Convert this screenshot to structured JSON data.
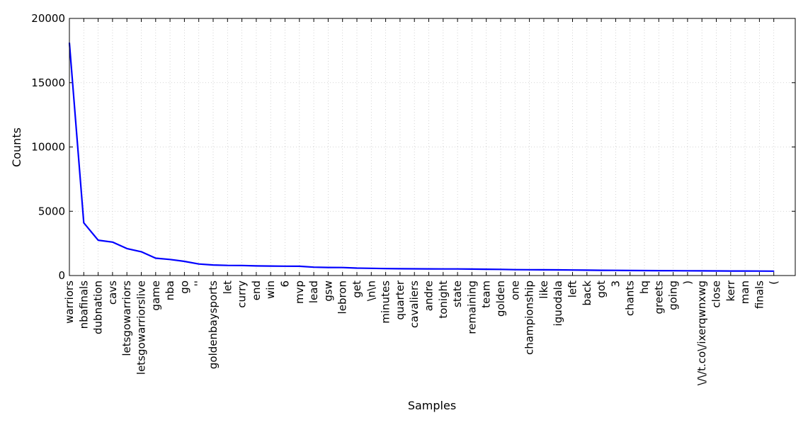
{
  "chart_data": {
    "type": "line",
    "title": "",
    "xlabel": "Samples",
    "ylabel": "Counts",
    "ylim": [
      0,
      20000
    ],
    "yticks": [
      "0",
      "5000",
      "10000",
      "15000",
      "20000"
    ],
    "grid": true,
    "line_color": "#0000ff",
    "categories": [
      "warriors",
      "nbafinals",
      "dubnation",
      "cavs",
      "letsgowarriors",
      "letsgowarriorslive",
      "game",
      "nba",
      "go",
      "''",
      "goldenbaysports",
      "let",
      "curry",
      "end",
      "win",
      "6",
      "mvp",
      "lead",
      "gsw",
      "lebron",
      "get",
      "\\n\\n",
      "minutes",
      "quarter",
      "cavaliers",
      "andre",
      "tonight",
      "state",
      "remaining",
      "team",
      "golden",
      "one",
      "championship",
      "like",
      "iguodala",
      "left",
      "back",
      "got",
      "3",
      "chants",
      "hq",
      "greets",
      "going",
      ")",
      "\\/\\/t.co\\/ixerqwnxwg",
      "close",
      "kerr",
      "man",
      "finals",
      "("
    ],
    "series": [
      {
        "values": [
          18100,
          4100,
          2750,
          2600,
          2100,
          1850,
          1350,
          1250,
          1100,
          900,
          820,
          790,
          780,
          750,
          740,
          730,
          720,
          650,
          630,
          620,
          580,
          560,
          540,
          530,
          525,
          520,
          515,
          510,
          500,
          490,
          480,
          460,
          450,
          445,
          440,
          430,
          420,
          410,
          400,
          390,
          385,
          380,
          375,
          370,
          365,
          360,
          355,
          350,
          345,
          340
        ]
      }
    ]
  }
}
